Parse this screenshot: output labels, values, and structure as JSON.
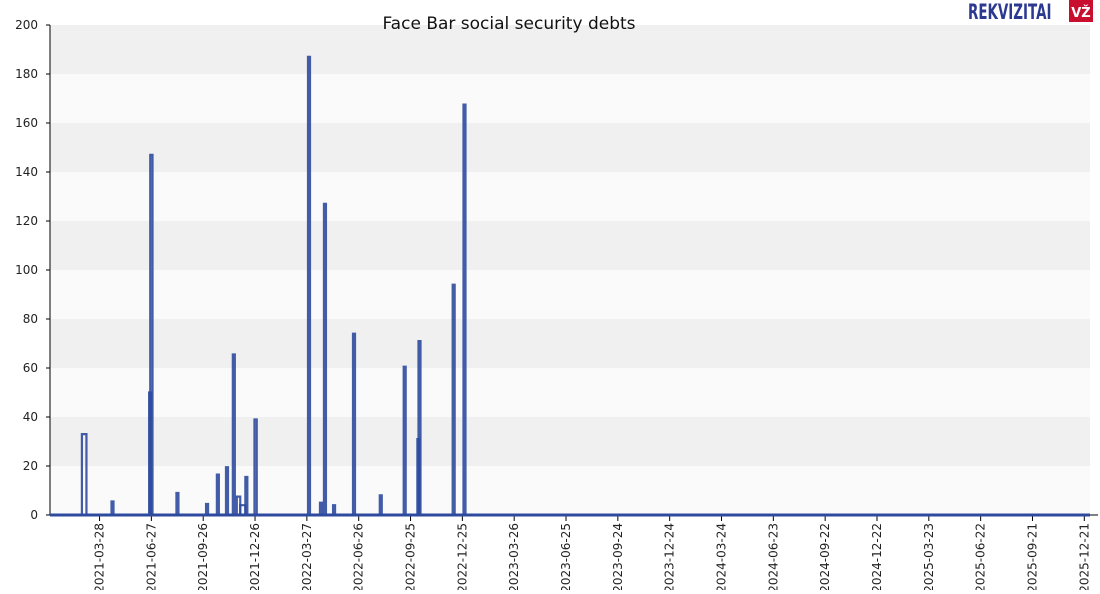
{
  "logo": {
    "text": "REKVIZITAI",
    "badge": "VŽ",
    "color": "#2b3990",
    "badge_color": "#c8102e"
  },
  "chart_data": {
    "type": "line",
    "title": "Face Bar social security debts",
    "xlabel": "",
    "ylabel": "",
    "xlim": [
      "2020-12-31",
      "2025-12-31"
    ],
    "ylim": [
      0,
      200
    ],
    "yticks": [
      0,
      20,
      40,
      60,
      80,
      100,
      120,
      140,
      160,
      180,
      200
    ],
    "xticks": [
      "2021-03-28",
      "2021-06-27",
      "2021-09-26",
      "2021-12-26",
      "2022-03-27",
      "2022-06-26",
      "2022-09-25",
      "2022-12-25",
      "2023-03-26",
      "2023-06-25",
      "2023-09-24",
      "2023-12-24",
      "2024-03-24",
      "2024-06-23",
      "2024-09-22",
      "2024-12-22",
      "2025-03-23",
      "2025-06-22",
      "2025-09-21",
      "2025-12-21"
    ],
    "grid": "horizontal bands",
    "line_color": "#2e4a9e",
    "series": [
      {
        "spikes": [
          {
            "start": "2021-02-25",
            "end": "2021-03-05",
            "value": 33
          },
          {
            "start": "2021-04-18",
            "end": "2021-04-20",
            "value": 5.5
          },
          {
            "start": "2021-06-23",
            "end": "2021-06-25",
            "value": 50
          },
          {
            "start": "2021-06-25",
            "end": "2021-06-29",
            "value": 147
          },
          {
            "start": "2021-08-10",
            "end": "2021-08-13",
            "value": 9
          },
          {
            "start": "2021-10-01",
            "end": "2021-10-03",
            "value": 4.5
          },
          {
            "start": "2021-10-20",
            "end": "2021-10-22",
            "value": 16.5
          },
          {
            "start": "2021-11-05",
            "end": "2021-11-07",
            "value": 19.5
          },
          {
            "start": "2021-11-17",
            "end": "2021-11-19",
            "value": 65.5
          },
          {
            "start": "2021-11-24",
            "end": "2021-11-30",
            "value": 7.5
          },
          {
            "start": "2021-11-30",
            "end": "2021-12-09",
            "value": 4
          },
          {
            "start": "2021-12-09",
            "end": "2021-12-11",
            "value": 15.5
          },
          {
            "start": "2021-12-25",
            "end": "2021-12-29",
            "value": 39
          },
          {
            "start": "2022-03-29",
            "end": "2022-04-01",
            "value": 187
          },
          {
            "start": "2022-04-19",
            "end": "2022-04-21",
            "value": 5
          },
          {
            "start": "2022-04-26",
            "end": "2022-04-29",
            "value": 127
          },
          {
            "start": "2022-05-12",
            "end": "2022-05-14",
            "value": 4
          },
          {
            "start": "2022-06-16",
            "end": "2022-06-19",
            "value": 74
          },
          {
            "start": "2022-08-02",
            "end": "2022-08-05",
            "value": 8
          },
          {
            "start": "2022-09-13",
            "end": "2022-09-16",
            "value": 60.5
          },
          {
            "start": "2022-10-07",
            "end": "2022-10-09",
            "value": 31
          },
          {
            "start": "2022-10-09",
            "end": "2022-10-12",
            "value": 71
          },
          {
            "start": "2022-12-08",
            "end": "2022-12-10",
            "value": 94
          },
          {
            "start": "2022-12-27",
            "end": "2022-12-30",
            "value": 167.5
          }
        ]
      }
    ]
  }
}
